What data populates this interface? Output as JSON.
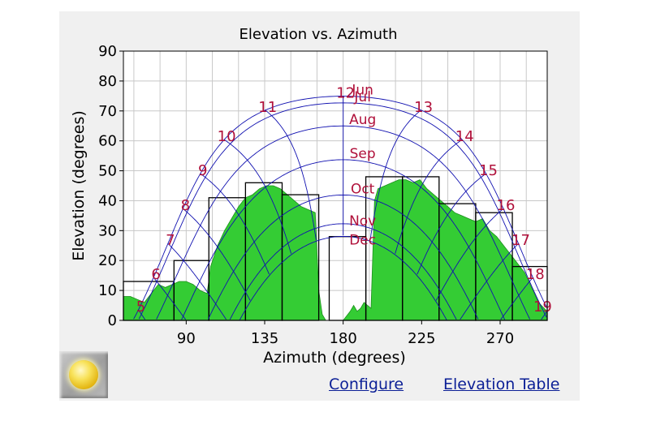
{
  "links": {
    "configure": "Configure",
    "elevation_table": "Elevation Table"
  },
  "sun_button": {
    "icon": "sun-icon"
  },
  "colors": {
    "terrain": "#34cc34",
    "sunpath": "#1010b0",
    "labels": "#b0103a",
    "boxes": "#000000",
    "grid": "#c8c8c8"
  },
  "chart_data": {
    "type": "area",
    "title": "Elevation vs. Azimuth",
    "xlabel": "Azimuth (degrees)",
    "ylabel": "Elevation (degrees)",
    "xlim": [
      54,
      297
    ],
    "ylim": [
      0,
      90
    ],
    "xticks": [
      90,
      135,
      180,
      225,
      270
    ],
    "yticks": [
      0,
      10,
      20,
      30,
      40,
      50,
      60,
      70,
      80,
      90
    ],
    "grid": true,
    "terrain_horizon": {
      "x": [
        54,
        58,
        62,
        66,
        70,
        74,
        78,
        82,
        86,
        90,
        94,
        98,
        102,
        104,
        108,
        112,
        116,
        120,
        124,
        128,
        132,
        136,
        140,
        144,
        148,
        152,
        156,
        160,
        164,
        166,
        168,
        170,
        172,
        174,
        176,
        180,
        184,
        186,
        188,
        190,
        192,
        194,
        196,
        198,
        200,
        204,
        208,
        212,
        216,
        220,
        224,
        228,
        232,
        236,
        240,
        244,
        248,
        252,
        256,
        260,
        264,
        268,
        272,
        276,
        280,
        284,
        288,
        292,
        297
      ],
      "y": [
        8,
        8,
        7,
        6,
        9,
        12,
        11,
        12,
        13,
        13,
        12,
        10,
        9,
        18,
        25,
        30,
        34,
        38,
        41,
        42,
        44,
        45,
        45,
        44,
        42,
        40,
        38,
        37,
        36,
        10,
        2,
        0,
        0,
        0,
        0,
        0,
        3,
        5,
        3,
        4,
        6,
        5,
        4,
        40,
        44,
        45,
        46,
        47,
        47,
        46,
        47,
        44,
        42,
        40,
        38,
        36,
        35,
        34,
        33,
        34,
        30,
        28,
        25,
        22,
        19,
        16,
        11,
        6,
        3
      ]
    },
    "sun_months": [
      {
        "name": "Jun",
        "decl": 23.44
      },
      {
        "name": "Jul",
        "decl": 21.2
      },
      {
        "name": "Aug",
        "decl": 13.5
      },
      {
        "name": "Sep",
        "decl": 2.2
      },
      {
        "name": "Oct",
        "decl": -9.6
      },
      {
        "name": "Nov",
        "decl": -19.2
      },
      {
        "name": "Dec",
        "decl": -23.44
      }
    ],
    "hours": [
      5,
      6,
      7,
      8,
      9,
      10,
      11,
      12,
      13,
      14,
      15,
      16,
      17,
      18,
      19
    ],
    "blocking_bars": [
      {
        "x0": 54,
        "x1": 83,
        "top": 13
      },
      {
        "x0": 83,
        "x1": 103,
        "top": 20
      },
      {
        "x0": 103,
        "x1": 124,
        "top": 41
      },
      {
        "x0": 124,
        "x1": 145,
        "top": 46
      },
      {
        "x0": 145,
        "x1": 166,
        "top": 42
      },
      {
        "x0": 172,
        "x1": 193,
        "top": 28
      },
      {
        "x0": 193,
        "x1": 214,
        "top": 48
      },
      {
        "x0": 214,
        "x1": 235,
        "top": 48
      },
      {
        "x0": 235,
        "x1": 256,
        "top": 39
      },
      {
        "x0": 256,
        "x1": 277,
        "top": 36
      },
      {
        "x0": 277,
        "x1": 297,
        "top": 18
      }
    ]
  }
}
